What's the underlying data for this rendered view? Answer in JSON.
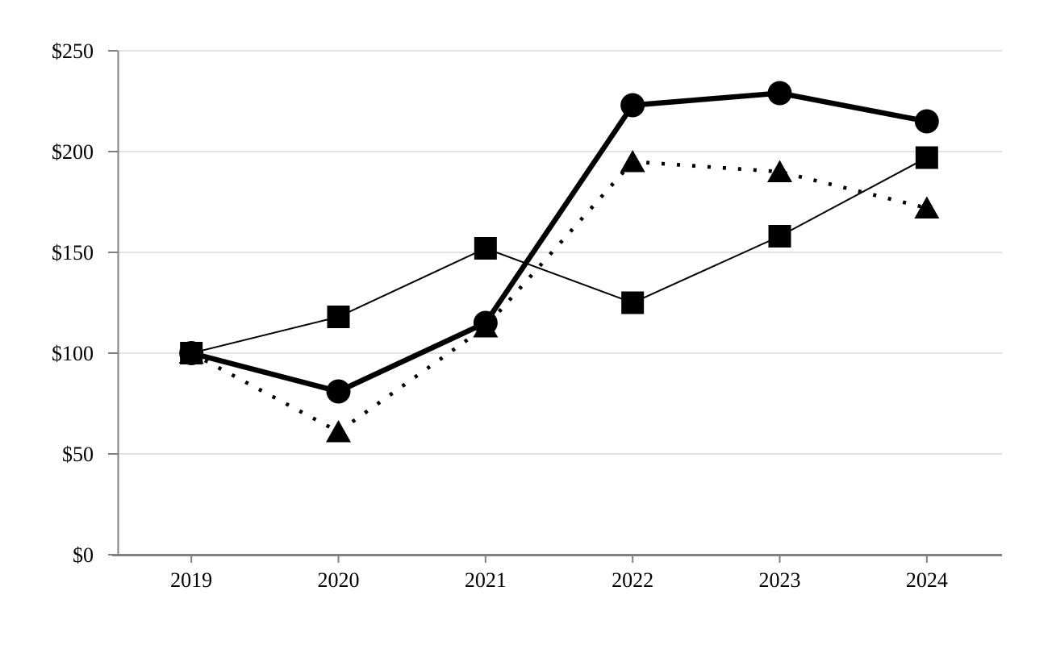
{
  "chart_data": {
    "type": "line",
    "title": "",
    "categories": [
      "2019",
      "2020",
      "2021",
      "2022",
      "2023",
      "2024"
    ],
    "series": [
      {
        "name": "dotted-line-triangle-markers",
        "marker": "triangle",
        "line_style": "dotted",
        "color": "#000000",
        "values": [
          100,
          61,
          113,
          195,
          190,
          172
        ]
      },
      {
        "name": "thick-solid-line-circle-markers",
        "marker": "circle",
        "line_style": "solid-thick",
        "color": "#000000",
        "values": [
          100,
          81,
          115,
          223,
          229,
          215
        ]
      },
      {
        "name": "thin-solid-line-square-markers",
        "marker": "square",
        "line_style": "solid-thin",
        "color": "#000000",
        "values": [
          100,
          118,
          152,
          125,
          158,
          197
        ]
      }
    ],
    "y_axis": {
      "min": 0,
      "max": 250,
      "tick_interval": 50,
      "tick_values": [
        0,
        50,
        100,
        150,
        200,
        250
      ],
      "tick_labels": [
        "$0",
        "$50",
        "$100",
        "$150",
        "$200",
        "$250"
      ]
    },
    "x_axis": {
      "tick_labels": [
        "2019",
        "2020",
        "2021",
        "2022",
        "2023",
        "2024"
      ]
    },
    "grid": "horizontal",
    "legend": "none",
    "colors": {
      "series": "#000000",
      "axis_line": "#808080",
      "gridline": "#d9d9d9",
      "tick_label": "#000000",
      "background": "#ffffff"
    }
  }
}
